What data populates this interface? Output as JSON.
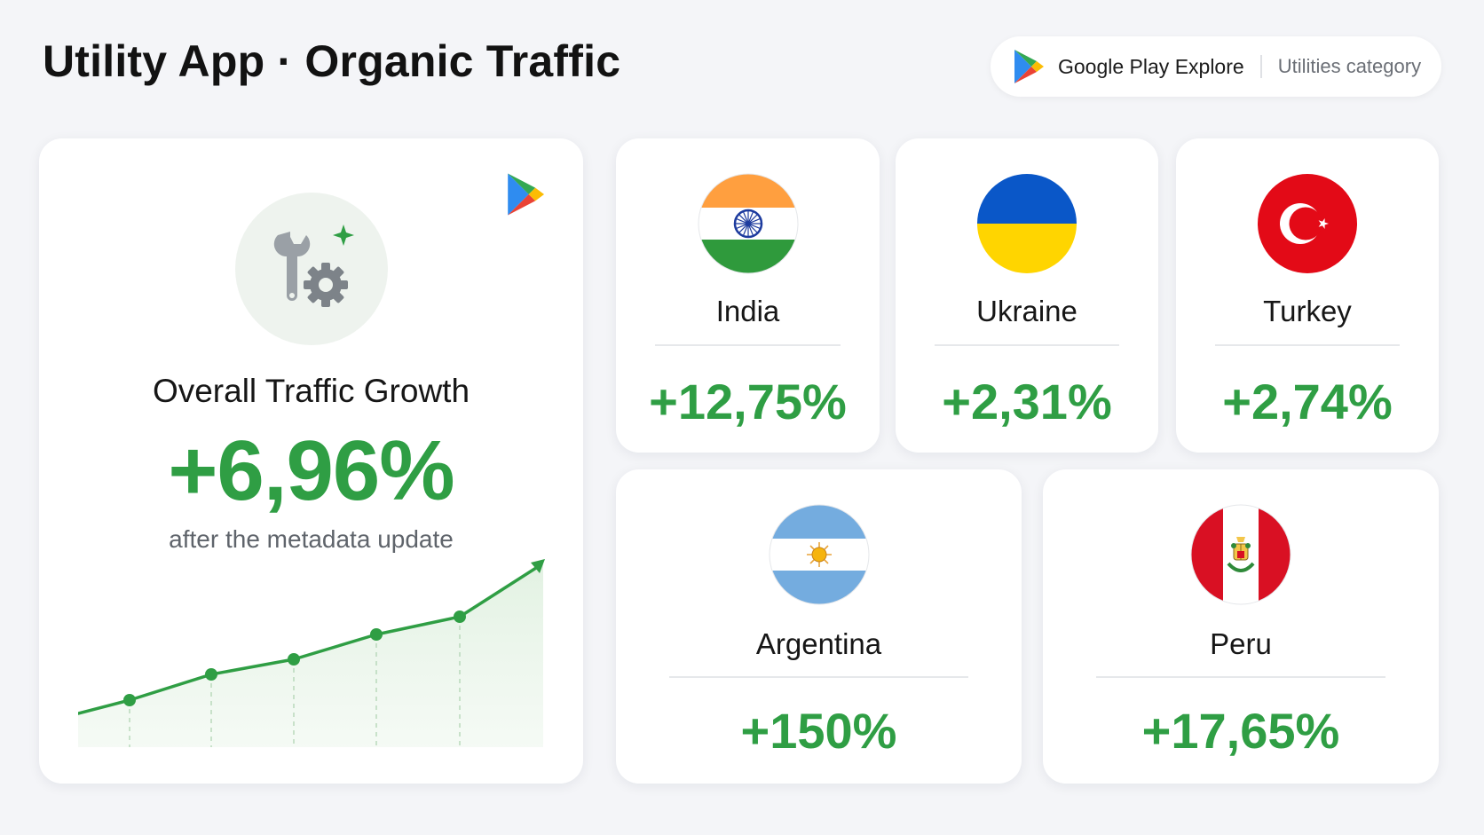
{
  "header": {
    "title": "Utility App · Organic Traffic",
    "source": {
      "name": "Google Play Explore",
      "category": "Utilities category",
      "logo_icon": "google-play-logo-icon"
    }
  },
  "overall": {
    "icon": "wrench-gear-icon",
    "label": "Overall Traffic Growth",
    "value": "+6,96%",
    "note": "after the metadata update",
    "trend_icon": "trend-up-arrow-icon"
  },
  "countries": [
    {
      "name": "India",
      "value": "+12,75%",
      "flag_icon": "india-flag-icon"
    },
    {
      "name": "Ukraine",
      "value": "+2,31%",
      "flag_icon": "ukraine-flag-icon"
    },
    {
      "name": "Turkey",
      "value": "+2,74%",
      "flag_icon": "turkey-flag-icon"
    },
    {
      "name": "Argentina",
      "value": "+150%",
      "flag_icon": "argentina-flag-icon"
    },
    {
      "name": "Peru",
      "value": "+17,65%",
      "flag_icon": "peru-flag-icon"
    }
  ],
  "colors": {
    "accent_green": "#2f9e44",
    "background": "#f4f5f8",
    "card": "#ffffff"
  }
}
